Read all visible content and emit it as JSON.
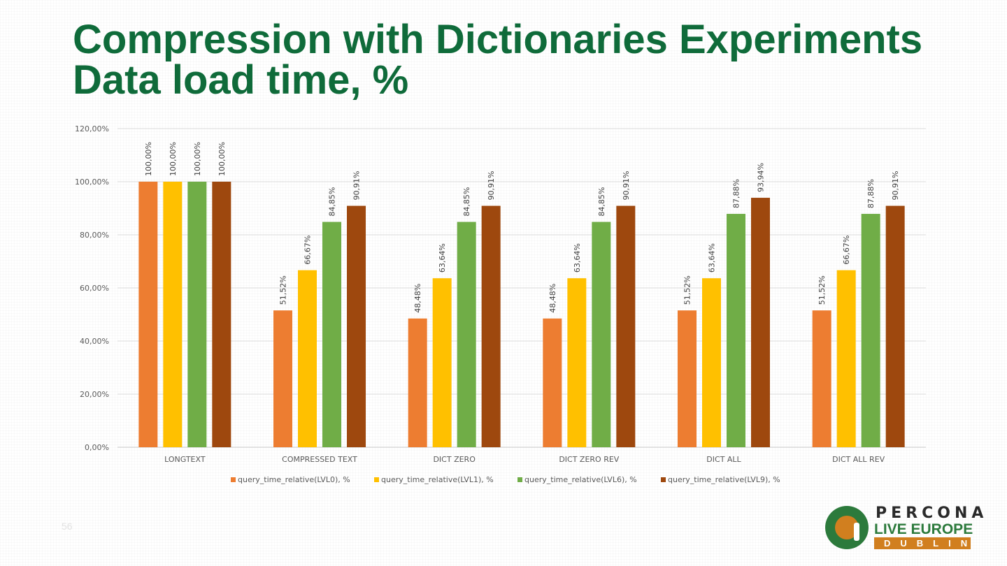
{
  "title": {
    "line1": "Compression with Dictionaries Experiments",
    "line2": "Data load time, %"
  },
  "page_number": "56",
  "logo": {
    "line1": "PERCONA",
    "line2": "LIVE EUROPE",
    "line3": "DUBLIN"
  },
  "colors": {
    "title": "#0f6b3a",
    "series": [
      "#ed7d31",
      "#ffc000",
      "#70ad47",
      "#9e480e"
    ]
  },
  "chart_data": {
    "type": "bar",
    "title": "",
    "xlabel": "",
    "ylabel": "",
    "ylim": [
      0,
      120
    ],
    "yticks": [
      "0,00%",
      "20,00%",
      "40,00%",
      "60,00%",
      "80,00%",
      "100,00%",
      "120,00%"
    ],
    "grid": true,
    "legend_position": "bottom",
    "categories": [
      "LONGTEXT",
      "COMPRESSED TEXT",
      "DICT ZERO",
      "DICT ZERO REV",
      "DICT ALL",
      "DICT ALL REV"
    ],
    "series": [
      {
        "name": "query_time_relative(LVL0), %",
        "color": "#ed7d31",
        "values": [
          100.0,
          51.52,
          48.48,
          48.48,
          51.52,
          51.52
        ],
        "labels": [
          "100,00%",
          "51,52%",
          "48,48%",
          "48,48%",
          "51,52%",
          "51,52%"
        ]
      },
      {
        "name": "query_time_relative(LVL1), %",
        "color": "#ffc000",
        "values": [
          100.0,
          66.67,
          63.64,
          63.64,
          63.64,
          66.67
        ],
        "labels": [
          "100,00%",
          "66,67%",
          "63,64%",
          "63,64%",
          "63,64%",
          "66,67%"
        ]
      },
      {
        "name": "query_time_relative(LVL6), %",
        "color": "#70ad47",
        "values": [
          100.0,
          84.85,
          84.85,
          84.85,
          87.88,
          87.88
        ],
        "labels": [
          "100,00%",
          "84,85%",
          "84,85%",
          "84,85%",
          "87,88%",
          "87,88%"
        ]
      },
      {
        "name": "query_time_relative(LVL9), %",
        "color": "#9e480e",
        "values": [
          100.0,
          90.91,
          90.91,
          90.91,
          93.94,
          90.91
        ],
        "labels": [
          "100,00%",
          "90,91%",
          "90,91%",
          "90,91%",
          "93,94%",
          "90,91%"
        ]
      }
    ]
  }
}
